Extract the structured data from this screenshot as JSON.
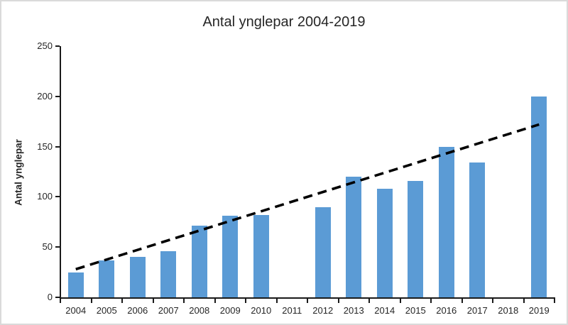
{
  "chart": {
    "title": "Antal ynglepar 2004-2019",
    "y_axis_title": "Antal ynglepar"
  },
  "chart_data": {
    "type": "bar",
    "title": "Antal ynglepar 2004-2019",
    "xlabel": "",
    "ylabel": "Antal ynglepar",
    "categories": [
      "2004",
      "2005",
      "2006",
      "2007",
      "2008",
      "2009",
      "2010",
      "2011",
      "2012",
      "2013",
      "2014",
      "2015",
      "2016",
      "2017",
      "2018",
      "2019"
    ],
    "values": [
      25,
      37,
      40,
      46,
      71,
      81,
      82,
      null,
      90,
      120,
      108,
      116,
      150,
      134,
      null,
      200
    ],
    "missing_years": [
      "2011",
      "2018"
    ],
    "ylim": [
      0,
      250
    ],
    "y_ticks": [
      0,
      50,
      100,
      150,
      200,
      250
    ],
    "grid": false,
    "legend": false,
    "bar_color": "#5B9BD5",
    "axis_color": "#1a1a1a",
    "trendline": {
      "type": "linear",
      "style": "dashed",
      "color": "#000000",
      "start_category": "2004",
      "end_category": "2019",
      "start_value": 28,
      "end_value": 172
    }
  }
}
